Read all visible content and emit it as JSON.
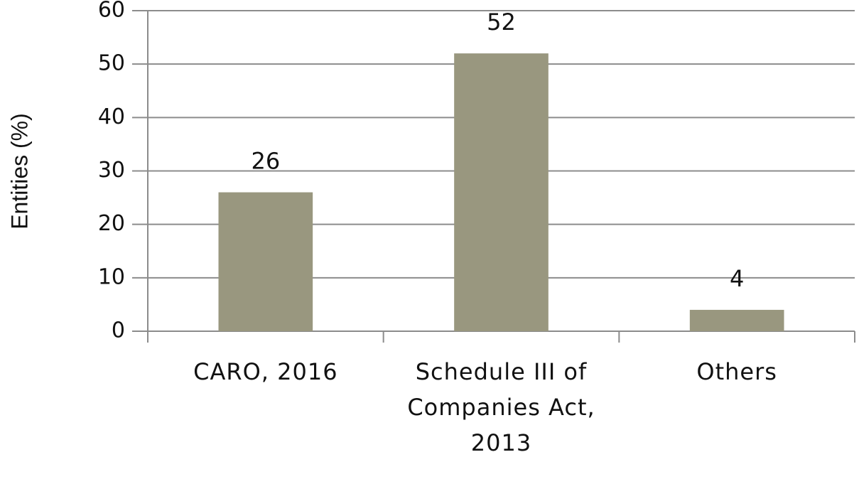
{
  "chart_data": {
    "type": "bar",
    "ylabel": "Entities (%)",
    "categories": [
      "CARO, 2016",
      "Schedule III of Companies Act, 2013",
      "Others"
    ],
    "values": [
      26,
      52,
      4
    ],
    "color": "#99977f",
    "ylim": [
      0,
      60
    ],
    "yticks": [
      0,
      10,
      20,
      30,
      40,
      50,
      60
    ],
    "grid": true
  }
}
